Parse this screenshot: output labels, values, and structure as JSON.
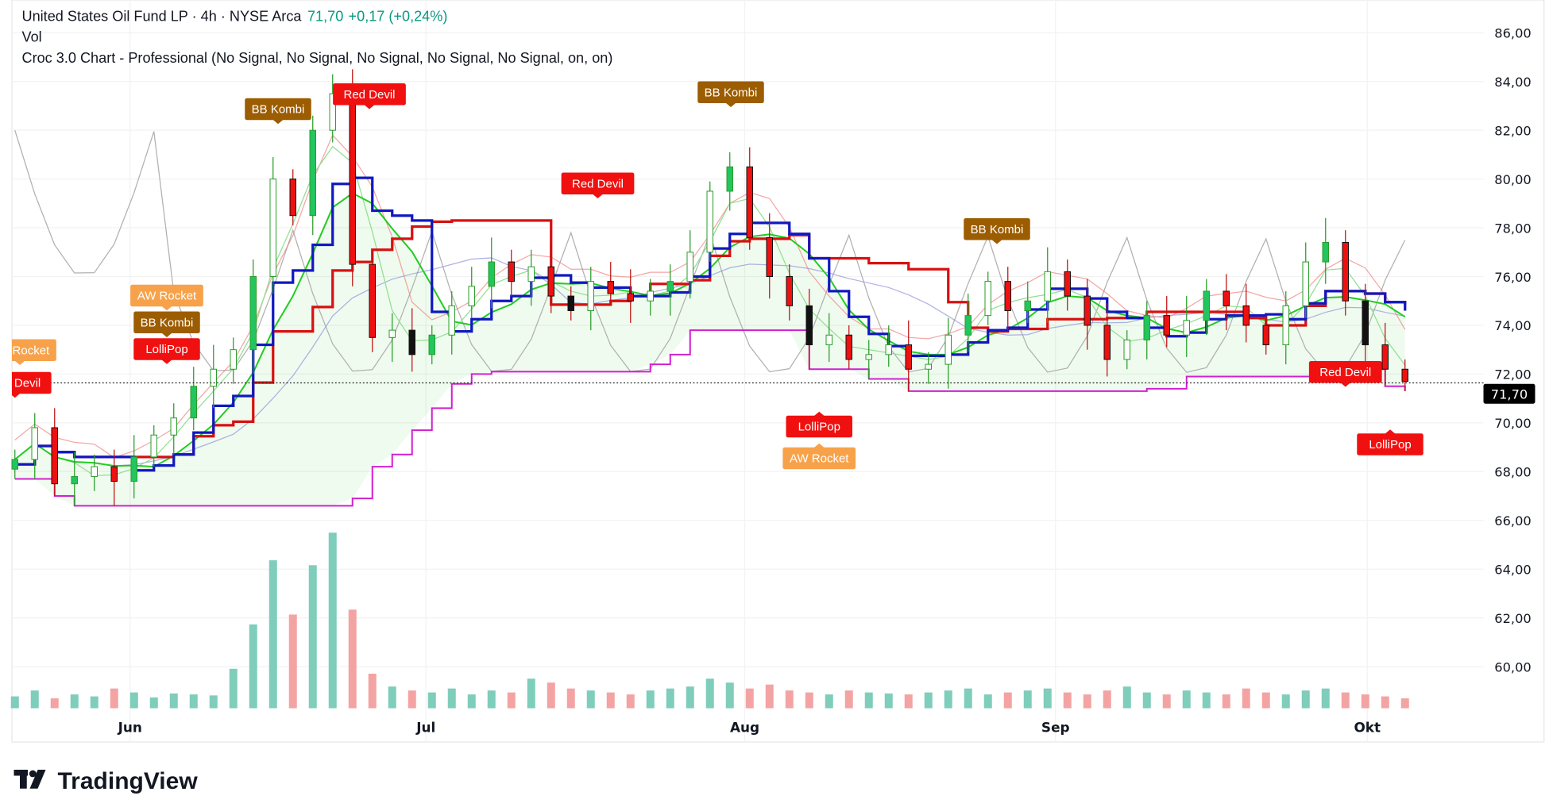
{
  "header": {
    "symbol_line": "United States Oil Fund LP · 4h · NYSE Arca",
    "last": "71,70",
    "change": "+0,17 (+0,24%)",
    "vol_label": "Vol",
    "indicator": "Croc 3.0 Chart - Professional (No Signal, No Signal, No Signal, No Signal, No Signal, on, on)"
  },
  "price_axis": [
    "86,00",
    "84,00",
    "82,00",
    "80,00",
    "78,00",
    "76,00",
    "74,00",
    "72,00",
    "70,00",
    "68,00",
    "66,00",
    "64,00",
    "62,00",
    "60,00"
  ],
  "current_price": "71,70",
  "months": [
    "Jun",
    "Jul",
    "Aug",
    "Sep",
    "Okt"
  ],
  "brand": "TradingView",
  "colors": {
    "up": "#22c55e",
    "down": "#f01010",
    "text_up": "#089981",
    "vol_up": "#7fcdbb",
    "vol_down": "#f4a3a3",
    "tenkan": "#1018c0",
    "kijun": "#d81010",
    "fast": "#22cc22",
    "lower": "#d020d0",
    "gray": "#b0b0b0"
  },
  "chart_data": {
    "type": "candlestick",
    "title": "United States Oil Fund LP · 4h · NYSE Arca",
    "ylim": [
      58,
      87
    ],
    "closes": [
      68.5,
      69.8,
      67.5,
      67.8,
      68.2,
      67.6,
      68.6,
      69.5,
      70.2,
      71.5,
      72.2,
      73,
      76,
      80,
      78.5,
      82,
      83.5,
      76.5,
      73.5,
      73.8,
      72.8,
      73.6,
      74.8,
      75.6,
      76.6,
      75.8,
      76.4,
      75.2,
      74.6,
      75.8,
      75.3,
      75,
      75.4,
      75.8,
      77,
      79.5,
      80.5,
      77.6,
      76,
      74.8,
      73.2,
      73.6,
      72.6,
      72.8,
      73.2,
      72.2,
      72.4,
      73.6,
      74.4,
      75.8,
      74.6,
      75,
      76.2,
      75.2,
      74,
      72.6,
      73.4,
      74.4,
      73.6,
      74.2,
      75.4,
      74.8,
      74,
      73.2,
      74.8,
      76.6,
      77.4,
      75,
      73.2,
      72.2,
      71.7
    ],
    "volumes": [
      12,
      18,
      10,
      14,
      12,
      20,
      16,
      11,
      15,
      14,
      13,
      40,
      85,
      150,
      95,
      145,
      178,
      100,
      35,
      22,
      18,
      16,
      20,
      14,
      18,
      16,
      30,
      26,
      20,
      18,
      16,
      14,
      18,
      20,
      22,
      30,
      26,
      20,
      24,
      18,
      16,
      14,
      18,
      16,
      15,
      14,
      16,
      18,
      20,
      14,
      16,
      18,
      20,
      16,
      14,
      18,
      22,
      16,
      14,
      18,
      16,
      14,
      20,
      16,
      14,
      18,
      20,
      16,
      14,
      12,
      10
    ],
    "signals": [
      {
        "text": "Red Devil",
        "color": "#f01010",
        "i": 16
      },
      {
        "text": "BB Kombi",
        "color": "#9c5c00",
        "i": 13
      },
      {
        "text": "BB Kombi",
        "color": "#9c5c00",
        "i": 36
      },
      {
        "text": "Red Devil",
        "color": "#f01010",
        "i": 29
      },
      {
        "text": "BB Kombi",
        "color": "#9c5c00",
        "i": 49
      },
      {
        "text": "AW Rocket",
        "color": "#f7a24a",
        "i": 8
      },
      {
        "text": "BB Kombi",
        "color": "#9c5c00",
        "i": 8
      },
      {
        "text": "LolliPop",
        "color": "#f01010",
        "i": 8
      },
      {
        "text": "AW Rocket",
        "color": "#f7a24a",
        "i": 0
      },
      {
        "text": "Red Devil",
        "color": "#f01010",
        "i": 0
      },
      {
        "text": "LolliPop",
        "color": "#f01010",
        "i": 40
      },
      {
        "text": "AW Rocket",
        "color": "#f7a24a",
        "i": 40
      },
      {
        "text": "Red Devil",
        "color": "#f01010",
        "i": 67
      },
      {
        "text": "LolliPop",
        "color": "#f01010",
        "i": 69
      }
    ]
  }
}
